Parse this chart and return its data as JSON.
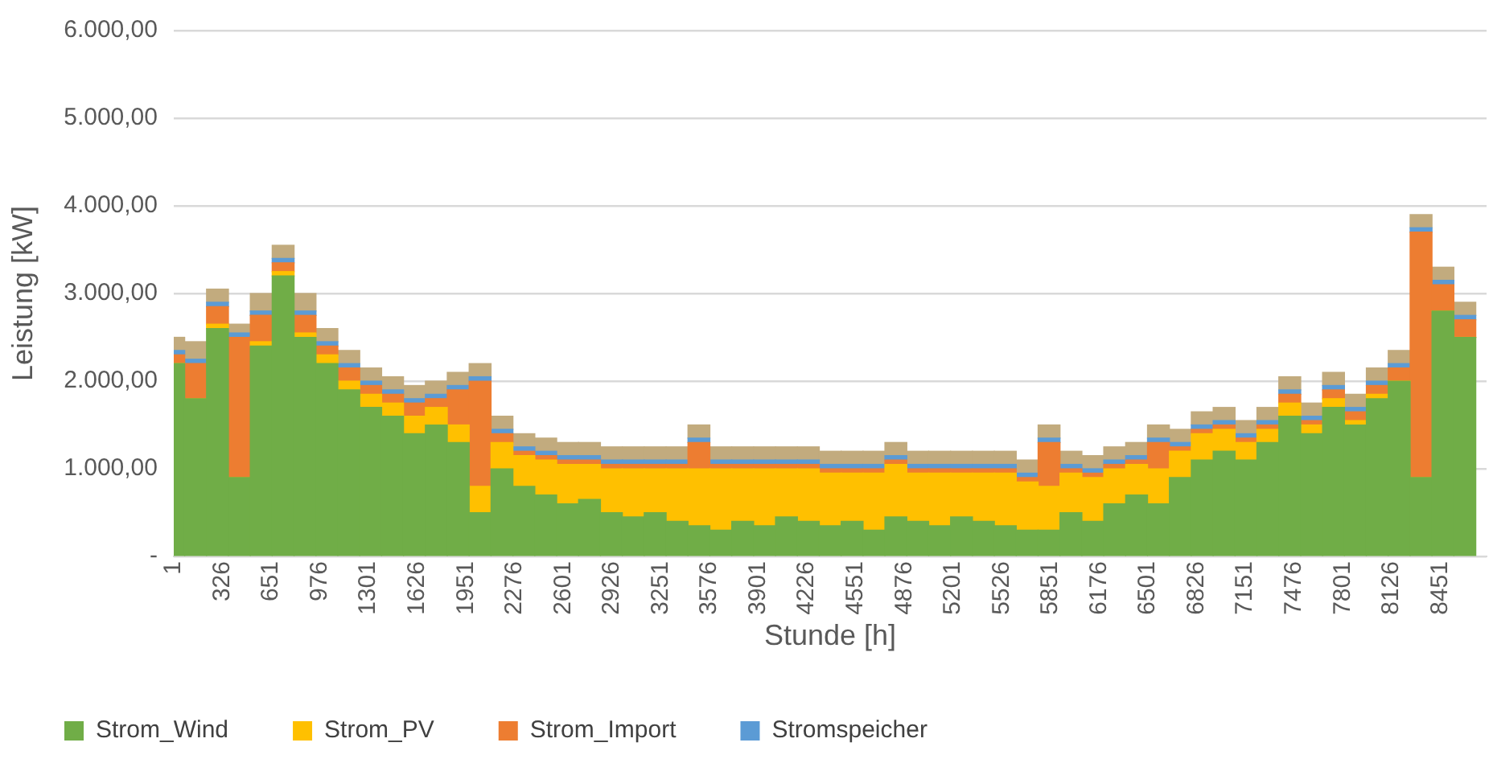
{
  "chart_data": {
    "type": "bar",
    "stacked": true,
    "xlabel": "Stunde [h]",
    "ylabel": "Leistung [kW]",
    "x": [
      1,
      147,
      293,
      439,
      585,
      731,
      877,
      1023,
      1169,
      1315,
      1461,
      1607,
      1753,
      1899,
      2045,
      2191,
      2337,
      2483,
      2629,
      2775,
      2921,
      3067,
      3213,
      3359,
      3505,
      3651,
      3797,
      3943,
      4089,
      4235,
      4381,
      4527,
      4673,
      4819,
      4965,
      5111,
      5257,
      5403,
      5549,
      5695,
      5841,
      5987,
      6133,
      6279,
      6425,
      6571,
      6717,
      6863,
      7009,
      7155,
      7301,
      7447,
      7593,
      7739,
      7885,
      8031,
      8177,
      8323,
      8469,
      8615
    ],
    "series": [
      {
        "name": "Strom_Wind",
        "color": "#70ad47",
        "values": [
          2200,
          1800,
          2600,
          900,
          2400,
          3200,
          2500,
          2200,
          1900,
          1700,
          1600,
          1400,
          1500,
          1300,
          500,
          1000,
          800,
          700,
          600,
          650,
          500,
          450,
          500,
          400,
          350,
          300,
          400,
          350,
          450,
          400,
          350,
          400,
          300,
          450,
          400,
          350,
          450,
          400,
          350,
          300,
          300,
          500,
          400,
          600,
          700,
          600,
          900,
          1100,
          1200,
          1100,
          1300,
          1600,
          1400,
          1700,
          1500,
          1800,
          2000,
          900,
          2800,
          2500
        ]
      },
      {
        "name": "Strom_PV",
        "color": "#ffc000",
        "values": [
          0,
          0,
          50,
          0,
          50,
          50,
          50,
          100,
          100,
          150,
          150,
          200,
          200,
          200,
          300,
          300,
          350,
          400,
          450,
          400,
          500,
          550,
          500,
          600,
          650,
          700,
          600,
          650,
          550,
          600,
          600,
          550,
          650,
          600,
          550,
          600,
          500,
          550,
          600,
          550,
          500,
          450,
          500,
          400,
          350,
          400,
          300,
          300,
          250,
          200,
          150,
          150,
          100,
          100,
          50,
          50,
          0,
          0,
          0,
          0
        ]
      },
      {
        "name": "Strom_Import",
        "color": "#ed7d31",
        "values": [
          100,
          400,
          200,
          1600,
          300,
          100,
          200,
          100,
          150,
          100,
          100,
          150,
          100,
          400,
          1200,
          100,
          50,
          50,
          50,
          50,
          50,
          50,
          50,
          50,
          300,
          50,
          50,
          50,
          50,
          50,
          50,
          50,
          50,
          50,
          50,
          50,
          50,
          50,
          50,
          50,
          500,
          50,
          50,
          50,
          50,
          300,
          50,
          50,
          50,
          50,
          50,
          100,
          50,
          100,
          100,
          100,
          150,
          2800,
          300,
          200
        ]
      },
      {
        "name": "Stromspeicher",
        "color": "#5b9bd5",
        "values": [
          50,
          50,
          50,
          50,
          50,
          50,
          50,
          50,
          50,
          50,
          50,
          50,
          50,
          50,
          50,
          50,
          50,
          50,
          50,
          50,
          50,
          50,
          50,
          50,
          50,
          50,
          50,
          50,
          50,
          50,
          50,
          50,
          50,
          50,
          50,
          50,
          50,
          50,
          50,
          50,
          50,
          50,
          50,
          50,
          50,
          50,
          50,
          50,
          50,
          50,
          50,
          50,
          50,
          50,
          50,
          50,
          50,
          50,
          50,
          50
        ]
      },
      {
        "color": "#c2ab7e",
        "values": [
          150,
          200,
          150,
          100,
          200,
          150,
          200,
          150,
          150,
          150,
          150,
          150,
          150,
          150,
          150,
          150,
          150,
          150,
          150,
          150,
          150,
          150,
          150,
          150,
          150,
          150,
          150,
          150,
          150,
          150,
          150,
          150,
          150,
          150,
          150,
          150,
          150,
          150,
          150,
          150,
          150,
          150,
          150,
          150,
          150,
          150,
          150,
          150,
          150,
          150,
          150,
          150,
          150,
          150,
          150,
          150,
          150,
          150,
          150,
          150
        ]
      }
    ],
    "xlim": [
      1,
      8760
    ],
    "xticks": [
      1,
      326,
      651,
      976,
      1301,
      1626,
      1951,
      2276,
      2601,
      2926,
      3251,
      3576,
      3901,
      4226,
      4551,
      4876,
      5201,
      5526,
      5851,
      6176,
      6501,
      6826,
      7151,
      7476,
      7801,
      8126,
      8451
    ],
    "ylim": [
      0,
      6000
    ],
    "yticks": [
      {
        "value": 0,
        "label": "-"
      },
      {
        "value": 1000,
        "label": "1.000,00"
      },
      {
        "value": 2000,
        "label": "2.000,00"
      },
      {
        "value": 3000,
        "label": "3.000,00"
      },
      {
        "value": 4000,
        "label": "4.000,00"
      },
      {
        "value": 5000,
        "label": "5.000,00"
      },
      {
        "value": 6000,
        "label": "6.000,00"
      }
    ],
    "grid": "y",
    "legend": "bottom"
  }
}
